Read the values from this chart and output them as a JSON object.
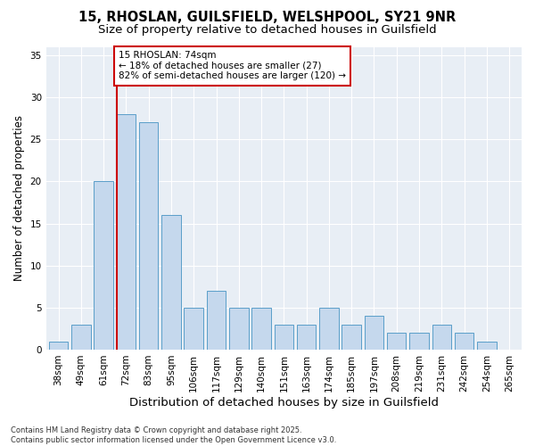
{
  "title1": "15, RHOSLAN, GUILSFIELD, WELSHPOOL, SY21 9NR",
  "title2": "Size of property relative to detached houses in Guilsfield",
  "xlabel": "Distribution of detached houses by size in Guilsfield",
  "ylabel": "Number of detached properties",
  "bins": [
    "38sqm",
    "49sqm",
    "61sqm",
    "72sqm",
    "83sqm",
    "95sqm",
    "106sqm",
    "117sqm",
    "129sqm",
    "140sqm",
    "151sqm",
    "163sqm",
    "174sqm",
    "185sqm",
    "197sqm",
    "208sqm",
    "219sqm",
    "231sqm",
    "242sqm",
    "254sqm",
    "265sqm"
  ],
  "values": [
    1,
    3,
    20,
    28,
    27,
    16,
    5,
    7,
    5,
    5,
    3,
    3,
    5,
    3,
    4,
    2,
    2,
    3,
    2,
    1,
    0
  ],
  "bar_color": "#c5d8ed",
  "bar_edge_color": "#5a9ec9",
  "vline_color": "#cc0000",
  "annotation_text": "15 RHOSLAN: 74sqm\n← 18% of detached houses are smaller (27)\n82% of semi-detached houses are larger (120) →",
  "annotation_box_facecolor": "#ffffff",
  "annotation_box_edgecolor": "#cc0000",
  "ylim": [
    0,
    36
  ],
  "yticks": [
    0,
    5,
    10,
    15,
    20,
    25,
    30,
    35
  ],
  "bg_color": "#e8eef5",
  "footnote": "Contains HM Land Registry data © Crown copyright and database right 2025.\nContains public sector information licensed under the Open Government Licence v3.0.",
  "title_fontsize": 10.5,
  "subtitle_fontsize": 9.5,
  "axis_label_fontsize": 8.5,
  "tick_fontsize": 7.5,
  "annotation_fontsize": 7.5,
  "footnote_fontsize": 6.0
}
